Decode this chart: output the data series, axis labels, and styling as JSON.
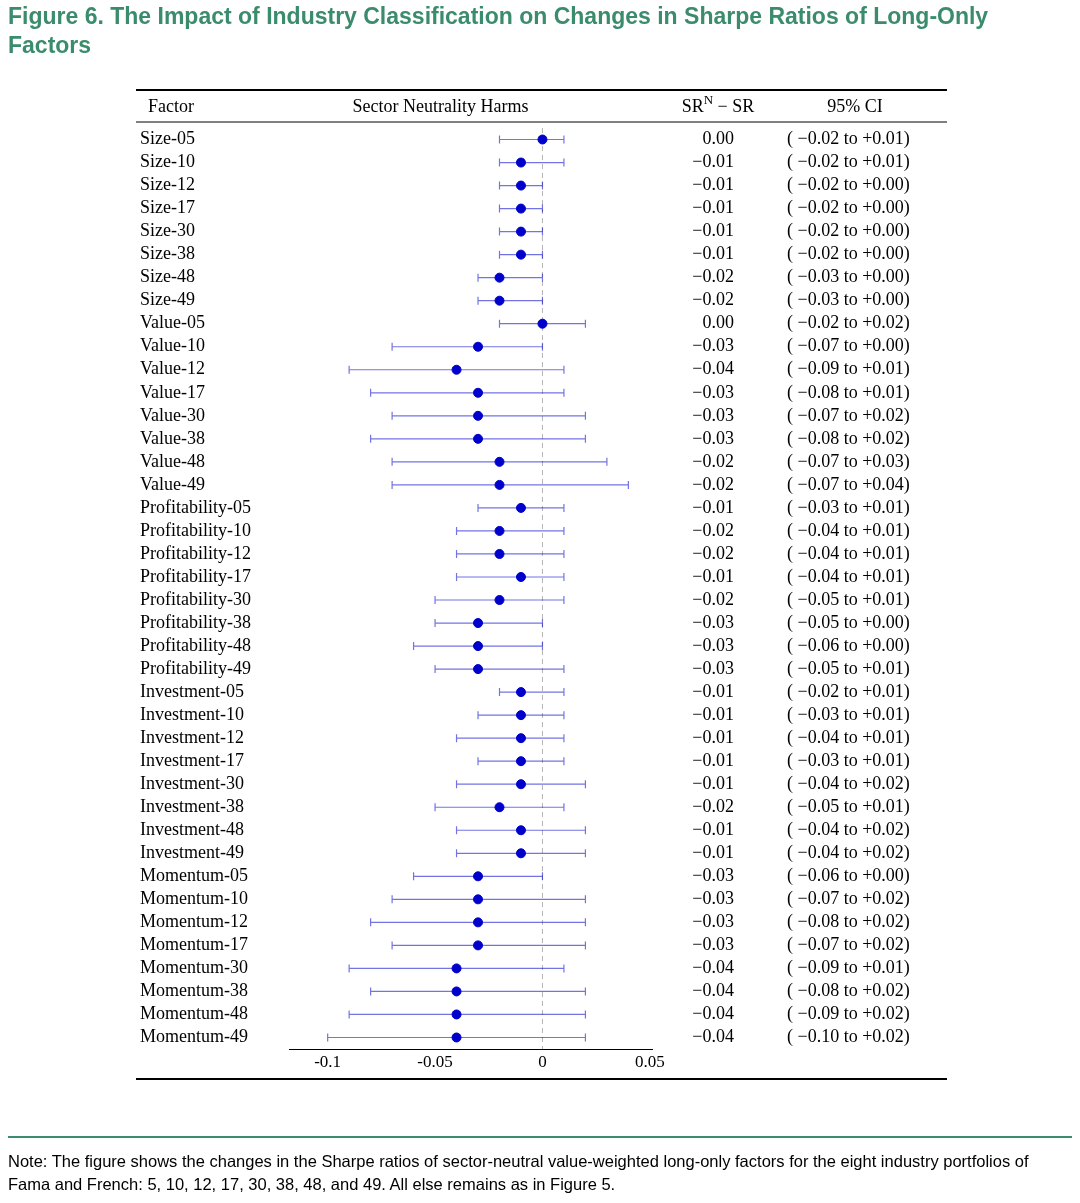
{
  "chart_data": {
    "type": "scatter",
    "title": "Figure 6. The Impact of Industry Classification on Changes in Sharpe Ratios of Long-Only Factors",
    "ylabel": "Factor",
    "xlabel": "Sector Neutrality Harms",
    "categories": [
      "Size-05",
      "Size-10",
      "Size-12",
      "Size-17",
      "Size-30",
      "Size-38",
      "Size-48",
      "Size-49",
      "Value-05",
      "Value-10",
      "Value-12",
      "Value-17",
      "Value-30",
      "Value-38",
      "Value-48",
      "Value-49",
      "Profitability-05",
      "Profitability-10",
      "Profitability-12",
      "Profitability-17",
      "Profitability-30",
      "Profitability-38",
      "Profitability-48",
      "Profitability-49",
      "Investment-05",
      "Investment-10",
      "Investment-12",
      "Investment-17",
      "Investment-30",
      "Investment-38",
      "Investment-48",
      "Investment-49",
      "Momentum-05",
      "Momentum-10",
      "Momentum-12",
      "Momentum-17",
      "Momentum-30",
      "Momentum-38",
      "Momentum-48",
      "Momentum-49"
    ],
    "color": "#0000cc",
    "values": [
      0.0,
      -0.01,
      -0.01,
      -0.01,
      -0.01,
      -0.01,
      -0.02,
      -0.02,
      0.0,
      -0.03,
      -0.04,
      -0.03,
      -0.03,
      -0.03,
      -0.02,
      -0.02,
      -0.01,
      -0.02,
      -0.02,
      -0.01,
      -0.02,
      -0.03,
      -0.03,
      -0.03,
      -0.01,
      -0.01,
      -0.01,
      -0.01,
      -0.01,
      -0.02,
      -0.01,
      -0.01,
      -0.03,
      -0.03,
      -0.03,
      -0.03,
      -0.04,
      -0.04,
      -0.04,
      -0.04
    ],
    "errors": [
      [
        -0.02,
        0.01
      ],
      [
        -0.02,
        0.01
      ],
      [
        -0.02,
        0.0
      ],
      [
        -0.02,
        0.0
      ],
      [
        -0.02,
        0.0
      ],
      [
        -0.02,
        0.0
      ],
      [
        -0.03,
        0.0
      ],
      [
        -0.03,
        0.0
      ],
      [
        -0.02,
        0.02
      ],
      [
        -0.07,
        0.0
      ],
      [
        -0.09,
        0.01
      ],
      [
        -0.08,
        0.01
      ],
      [
        -0.07,
        0.02
      ],
      [
        -0.08,
        0.02
      ],
      [
        -0.07,
        0.03
      ],
      [
        -0.07,
        0.04
      ],
      [
        -0.03,
        0.01
      ],
      [
        -0.04,
        0.01
      ],
      [
        -0.04,
        0.01
      ],
      [
        -0.04,
        0.01
      ],
      [
        -0.05,
        0.01
      ],
      [
        -0.05,
        0.0
      ],
      [
        -0.06,
        0.0
      ],
      [
        -0.05,
        0.01
      ],
      [
        -0.02,
        0.01
      ],
      [
        -0.03,
        0.01
      ],
      [
        -0.04,
        0.01
      ],
      [
        -0.03,
        0.01
      ],
      [
        -0.04,
        0.02
      ],
      [
        -0.05,
        0.01
      ],
      [
        -0.04,
        0.02
      ],
      [
        -0.04,
        0.02
      ],
      [
        -0.06,
        0.0
      ],
      [
        -0.07,
        0.02
      ],
      [
        -0.08,
        0.02
      ],
      [
        -0.07,
        0.02
      ],
      [
        -0.09,
        0.01
      ],
      [
        -0.08,
        0.02
      ],
      [
        -0.09,
        0.02
      ],
      [
        -0.1,
        0.02
      ]
    ],
    "value_labels": [
      "0.00",
      "−0.01",
      "−0.01",
      "−0.01",
      "−0.01",
      "−0.01",
      "−0.02",
      "−0.02",
      "0.00",
      "−0.03",
      "−0.04",
      "−0.03",
      "−0.03",
      "−0.03",
      "−0.02",
      "−0.02",
      "−0.01",
      "−0.02",
      "−0.02",
      "−0.01",
      "−0.02",
      "−0.03",
      "−0.03",
      "−0.03",
      "−0.01",
      "−0.01",
      "−0.01",
      "−0.01",
      "−0.01",
      "−0.02",
      "−0.01",
      "−0.01",
      "−0.03",
      "−0.03",
      "−0.03",
      "−0.03",
      "−0.04",
      "−0.04",
      "−0.04",
      "−0.04"
    ],
    "orientation": "horizontal",
    "xlim": [
      -0.118,
      0.051
    ],
    "xticks": [
      -0.1,
      -0.05,
      0,
      0.05
    ],
    "marker": "circle",
    "ref_lines": [
      {
        "axis": "x",
        "value": 0,
        "color": "#b4b4b4",
        "line_style": "dashed"
      }
    ],
    "annotations": [
      "SR$^{N}$ − SR",
      "95% CI",
      "( −0.02 to +0.01)",
      "( −0.02 to +0.01)",
      "( −0.02 to +0.00)",
      "( −0.02 to +0.00)",
      "( −0.02 to +0.00)",
      "( −0.02 to +0.00)",
      "( −0.03 to +0.00)",
      "( −0.03 to +0.00)",
      "( −0.02 to +0.02)",
      "( −0.07 to +0.00)",
      "( −0.09 to +0.01)",
      "( −0.08 to +0.01)",
      "( −0.07 to +0.02)",
      "( −0.08 to +0.02)",
      "( −0.07 to +0.03)",
      "( −0.07 to +0.04)",
      "( −0.03 to +0.01)",
      "( −0.04 to +0.01)",
      "( −0.04 to +0.01)",
      "( −0.04 to +0.01)",
      "( −0.05 to +0.01)",
      "( −0.05 to +0.00)",
      "( −0.06 to +0.00)",
      "( −0.05 to +0.01)",
      "( −0.02 to +0.01)",
      "( −0.03 to +0.01)",
      "( −0.04 to +0.01)",
      "( −0.03 to +0.01)",
      "( −0.04 to +0.02)",
      "( −0.05 to +0.01)",
      "( −0.04 to +0.02)",
      "( −0.04 to +0.02)",
      "( −0.06 to +0.00)",
      "( −0.07 to +0.02)",
      "( −0.08 to +0.02)",
      "( −0.07 to +0.02)",
      "( −0.09 to +0.01)",
      "( −0.08 to +0.02)",
      "( −0.09 to +0.02)",
      "( −0.10 to +0.02)",
      "Note: The figure shows the changes in the Sharpe ratios of sector-neutral value-weighted long-only factors for the eight industry portfolios of Fama and French: 5, 10, 12, 17, 30, 38, 48, and 49. All else remains as in Figure 5."
    ]
  }
}
